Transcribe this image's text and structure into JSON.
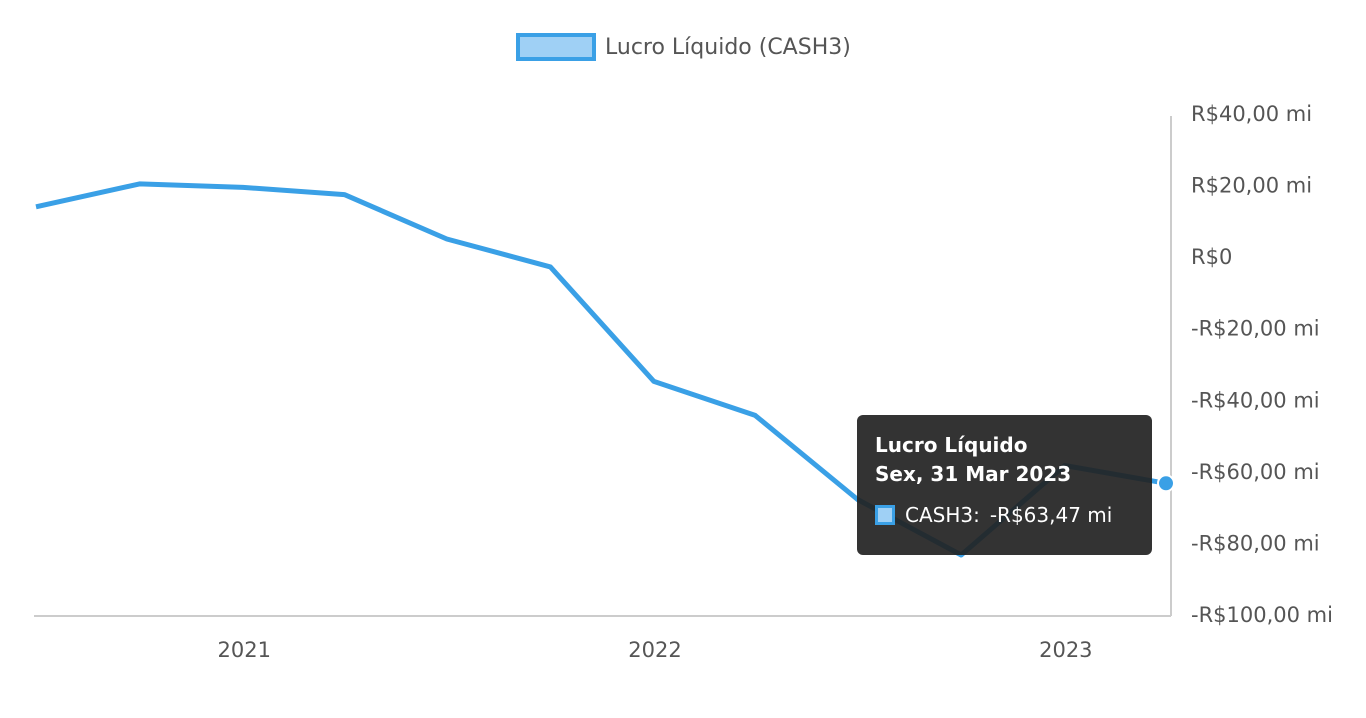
{
  "chart_data": {
    "type": "line",
    "legend": {
      "label": "Lucro Líquido (CASH3)",
      "placement": "top-center"
    },
    "series": [
      {
        "name": "Lucro Líquido (CASH3)",
        "color": "#3aa0e6",
        "x": [
          "2020-06-30",
          "2020-09-30",
          "2020-12-31",
          "2021-03-31",
          "2021-06-30",
          "2021-09-30",
          "2021-12-31",
          "2022-03-31",
          "2022-06-30",
          "2022-09-30",
          "2022-12-31",
          "2023-03-31"
        ],
        "values": [
          13.8,
          20.2,
          19.2,
          17.2,
          4.8,
          -3.0,
          -35.0,
          -44.5,
          -68.0,
          -83.5,
          -58.5,
          -63.47
        ]
      }
    ],
    "y_axis": {
      "position": "right",
      "ylim": [
        -100,
        40
      ],
      "ticks": [
        40,
        20,
        0,
        -20,
        -40,
        -60,
        -80,
        -100
      ],
      "tick_labels": [
        "R$40,00 mi",
        "R$20,00 mi",
        "R$0",
        "-R$20,00 mi",
        "-R$40,00 mi",
        "-R$60,00 mi",
        "-R$80,00 mi",
        "-R$100,00 mi"
      ]
    },
    "x_axis": {
      "xlim": [
        "2020-06-30",
        "2023-03-31"
      ],
      "ticks": [
        "2021-01-01",
        "2022-01-01",
        "2023-01-01"
      ],
      "tick_labels": [
        "2021",
        "2022",
        "2023"
      ]
    },
    "grid": false
  },
  "tooltip": {
    "title": "Lucro Líquido",
    "date": "Sex, 31 Mar 2023",
    "series_label": "CASH3:",
    "value": "-R$63,47 mi"
  }
}
